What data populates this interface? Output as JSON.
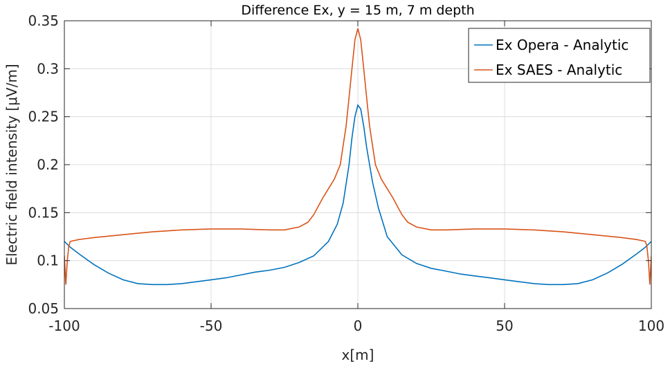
{
  "chart_data": {
    "type": "line",
    "title": "Difference Ex, y = 15 m, 7 m depth",
    "xlabel": "x[m]",
    "ylabel": "Electric field intensity [μV/m]",
    "xlim": [
      -100,
      100
    ],
    "ylim": [
      0.05,
      0.35
    ],
    "x_ticks": [
      -100,
      -50,
      0,
      50,
      100
    ],
    "y_ticks": [
      0.05,
      0.1,
      0.15,
      0.2,
      0.25,
      0.3,
      0.35
    ],
    "x_tick_labels": [
      "-100",
      "-50",
      "0",
      "50",
      "100"
    ],
    "y_tick_labels": [
      "0.05",
      "0.1",
      "0.15",
      "0.2",
      "0.25",
      "0.3",
      "0.35"
    ],
    "grid": true,
    "legend_position": "top-right",
    "series": [
      {
        "name": "Ex Opera - Analytic",
        "color": "#0072BD",
        "x": [
          -100,
          -98,
          -95,
          -90,
          -85,
          -80,
          -75,
          -70,
          -65,
          -60,
          -55,
          -50,
          -45,
          -40,
          -35,
          -30,
          -25,
          -20,
          -15,
          -10,
          -7,
          -5,
          -3,
          -2,
          -1,
          0,
          1,
          2,
          3,
          5,
          7,
          10,
          15,
          20,
          25,
          30,
          35,
          40,
          45,
          50,
          55,
          60,
          65,
          70,
          75,
          80,
          85,
          90,
          95,
          98,
          100
        ],
        "values": [
          0.12,
          0.114,
          0.107,
          0.096,
          0.087,
          0.08,
          0.076,
          0.075,
          0.075,
          0.076,
          0.078,
          0.08,
          0.082,
          0.085,
          0.088,
          0.09,
          0.093,
          0.098,
          0.105,
          0.12,
          0.138,
          0.16,
          0.2,
          0.228,
          0.25,
          0.262,
          0.258,
          0.24,
          0.218,
          0.182,
          0.155,
          0.125,
          0.106,
          0.097,
          0.092,
          0.089,
          0.086,
          0.084,
          0.082,
          0.08,
          0.078,
          0.076,
          0.075,
          0.075,
          0.076,
          0.08,
          0.087,
          0.096,
          0.107,
          0.114,
          0.12
        ]
      },
      {
        "name": "Ex SAES - Analytic",
        "color": "#D95319",
        "x": [
          -100,
          -99.5,
          -99,
          -98.5,
          -98,
          -95,
          -90,
          -80,
          -70,
          -60,
          -50,
          -40,
          -30,
          -25,
          -20,
          -17,
          -15,
          -12,
          -10,
          -8,
          -6,
          -4,
          -3,
          -2,
          -1,
          0,
          1,
          2,
          3,
          4,
          6,
          8,
          10,
          12,
          15,
          17,
          20,
          25,
          30,
          40,
          50,
          60,
          70,
          80,
          90,
          95,
          98,
          98.5,
          99,
          99.5,
          100
        ],
        "values": [
          0.105,
          0.075,
          0.1,
          0.115,
          0.12,
          0.122,
          0.124,
          0.127,
          0.13,
          0.132,
          0.133,
          0.133,
          0.132,
          0.132,
          0.135,
          0.14,
          0.148,
          0.165,
          0.175,
          0.185,
          0.2,
          0.24,
          0.27,
          0.3,
          0.33,
          0.342,
          0.33,
          0.3,
          0.27,
          0.24,
          0.2,
          0.185,
          0.175,
          0.165,
          0.148,
          0.14,
          0.135,
          0.132,
          0.132,
          0.133,
          0.133,
          0.132,
          0.13,
          0.127,
          0.124,
          0.122,
          0.12,
          0.115,
          0.1,
          0.075,
          0.105
        ]
      }
    ]
  }
}
